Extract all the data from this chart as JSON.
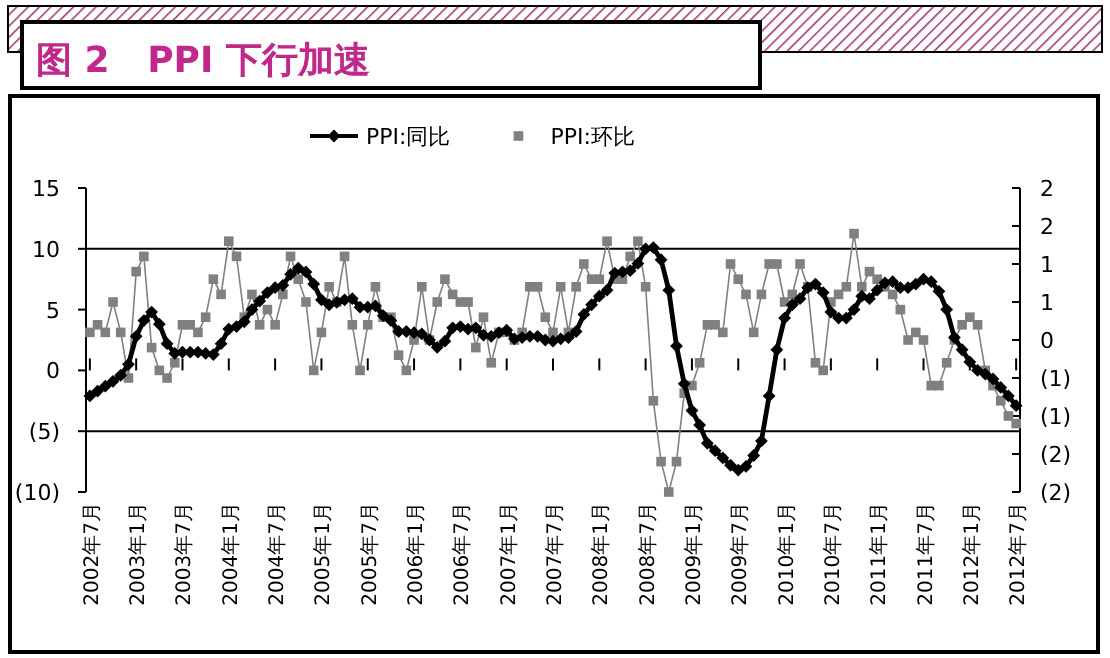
{
  "chart_data": {
    "type": "line",
    "title": "图 2   PPI 下行加速",
    "categories": [
      "2002年7月",
      null,
      null,
      null,
      null,
      null,
      "2003年1月",
      null,
      null,
      null,
      null,
      null,
      "2003年7月",
      null,
      null,
      null,
      null,
      null,
      "2004年1月",
      null,
      null,
      null,
      null,
      null,
      "2004年7月",
      null,
      null,
      null,
      null,
      null,
      "2005年1月",
      null,
      null,
      null,
      null,
      null,
      "2005年7月",
      null,
      null,
      null,
      null,
      null,
      "2006年1月",
      null,
      null,
      null,
      null,
      null,
      "2006年7月",
      null,
      null,
      null,
      null,
      null,
      "2007年1月",
      null,
      null,
      null,
      null,
      null,
      "2007年7月",
      null,
      null,
      null,
      null,
      null,
      "2008年1月",
      null,
      null,
      null,
      null,
      null,
      "2008年7月",
      null,
      null,
      null,
      null,
      null,
      "2009年1月",
      null,
      null,
      null,
      null,
      null,
      "2009年7月",
      null,
      null,
      null,
      null,
      null,
      "2010年1月",
      null,
      null,
      null,
      null,
      null,
      "2010年7月",
      null,
      null,
      null,
      null,
      null,
      "2011年1月",
      null,
      null,
      null,
      null,
      null,
      "2011年7月",
      null,
      null,
      null,
      null,
      null,
      "2012年1月",
      null,
      null,
      null,
      null,
      null,
      "2012年7月"
    ],
    "series": [
      {
        "name": "PPI:同比",
        "color": "#000000",
        "type": "line",
        "marker": "diamond",
        "line_style": "solid",
        "values": [
          -2.1,
          -1.7,
          -1.3,
          -0.9,
          -0.4,
          0.5,
          2.8,
          4.1,
          4.8,
          3.8,
          2.2,
          1.4,
          1.5,
          1.5,
          1.5,
          1.4,
          1.3,
          2.2,
          3.4,
          3.6,
          4.0,
          5.0,
          5.7,
          6.4,
          6.8,
          7.0,
          7.9,
          8.4,
          8.1,
          7.1,
          5.8,
          5.4,
          5.6,
          5.8,
          5.9,
          5.2,
          5.2,
          5.3,
          4.5,
          4.1,
          3.2,
          3.2,
          3.1,
          3.0,
          2.5,
          1.9,
          2.4,
          3.5,
          3.6,
          3.4,
          3.5,
          2.9,
          2.8,
          3.1,
          3.3,
          2.6,
          2.7,
          2.8,
          2.8,
          2.5,
          2.4,
          2.6,
          2.7,
          3.2,
          4.6,
          5.4,
          6.1,
          6.6,
          8.0,
          8.1,
          8.2,
          8.8,
          10.0,
          10.1,
          9.1,
          6.6,
          2.0,
          -1.1,
          -3.3,
          -4.5,
          -6.0,
          -6.6,
          -7.2,
          -7.8,
          -8.2,
          -7.9,
          -7.0,
          -5.8,
          -2.1,
          1.7,
          4.3,
          5.4,
          5.9,
          6.8,
          7.1,
          6.4,
          4.8,
          4.3,
          4.3,
          5.0,
          6.1,
          5.9,
          6.6,
          7.2,
          7.3,
          6.8,
          6.8,
          7.1,
          7.5,
          7.3,
          6.5,
          5.0,
          2.7,
          1.7,
          0.7,
          0.0,
          -0.3,
          -0.7,
          -1.4,
          -2.1,
          -2.9
        ]
      },
      {
        "name": "PPI:环比",
        "color": "#808080",
        "type": "line",
        "axis": "y2",
        "marker": "square",
        "line_style": "solid",
        "values": [
          0.1,
          0.2,
          0.1,
          0.5,
          0.1,
          -0.5,
          0.9,
          1.1,
          -0.1,
          -0.4,
          -0.5,
          -0.3,
          0.2,
          0.2,
          0.1,
          0.3,
          0.8,
          0.6,
          1.3,
          1.1,
          0.3,
          0.6,
          0.2,
          0.4,
          0.2,
          0.6,
          1.1,
          0.8,
          0.5,
          -0.4,
          0.1,
          0.7,
          0.5,
          1.1,
          0.2,
          -0.4,
          0.2,
          0.7,
          0.3,
          0.3,
          -0.2,
          -0.4,
          0.0,
          0.7,
          0.0,
          0.5,
          0.8,
          0.6,
          0.5,
          0.5,
          -0.1,
          0.3,
          -0.3,
          0.1,
          0.1,
          0.0,
          0.1,
          0.7,
          0.7,
          0.3,
          0.1,
          0.7,
          0.1,
          0.7,
          1.0,
          0.8,
          0.8,
          1.3,
          0.8,
          0.8,
          1.1,
          1.3,
          0.7,
          -0.8,
          -1.6,
          -2.0,
          -1.6,
          -0.7,
          -0.6,
          -0.3,
          0.2,
          0.2,
          0.1,
          1.0,
          0.8,
          0.6,
          0.1,
          0.6,
          1.0,
          1.0,
          0.5,
          0.6,
          1.0,
          0.7,
          -0.3,
          -0.4,
          0.5,
          0.6,
          0.7,
          1.4,
          0.7,
          0.9,
          0.8,
          0.7,
          0.6,
          0.4,
          0.0,
          0.1,
          0.0,
          -0.6,
          -0.6,
          -0.3,
          0.0,
          0.2,
          0.3,
          0.2,
          -0.4,
          -0.6,
          -0.8,
          -1.0,
          -1.1
        ]
      }
    ],
    "ylim": [
      -10,
      15
    ],
    "yticks": [
      {
        "value": -10,
        "label": "(10)"
      },
      {
        "value": -5,
        "label": "(5)"
      },
      0,
      5,
      10,
      15
    ],
    "y2lim": [
      -2,
      2
    ],
    "y2ticks": [
      {
        "value": -2,
        "label": "(2)"
      },
      {
        "value": -1.5,
        "label": "(2)"
      },
      {
        "value": -1,
        "label": "(1)"
      },
      {
        "value": -0.5,
        "label": "(1)"
      },
      0,
      {
        "value": 0.5,
        "label": "1"
      },
      1,
      {
        "value": 1.5,
        "label": "2"
      },
      2
    ],
    "ref_lines": [
      {
        "axis": "y",
        "value": 10,
        "color": "#000000"
      },
      {
        "axis": "y",
        "value": -5,
        "color": "#000000"
      }
    ],
    "legend": "top"
  }
}
